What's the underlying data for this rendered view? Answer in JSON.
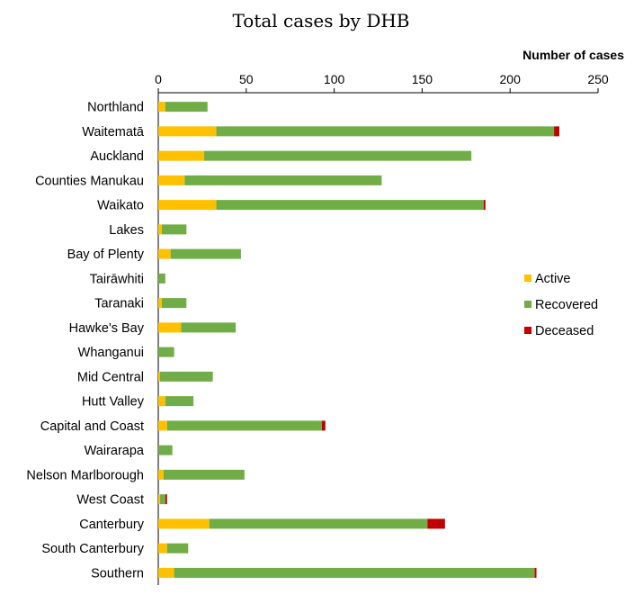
{
  "chart_data": {
    "type": "bar",
    "orientation": "horizontal",
    "stacked": true,
    "title": "Total cases by DHB",
    "xlabel": "Number of cases",
    "ylabel": "",
    "xlim": [
      0,
      250
    ],
    "xticks": [
      0,
      50,
      100,
      150,
      200,
      250
    ],
    "xtick_labels": [
      "0",
      "50",
      "100",
      "150",
      "200",
      "250"
    ],
    "legend_position": "right",
    "categories": [
      "Northland",
      "Waitematā",
      "Auckland",
      "Counties Manukau",
      "Waikato",
      "Lakes",
      "Bay of Plenty",
      "Tairāwhiti",
      "Taranaki",
      "Hawke's Bay",
      "Whanganui",
      "Mid Central",
      "Hutt Valley",
      "Capital and Coast",
      "Wairarapa",
      "Nelson Marlborough",
      "West Coast",
      "Canterbury",
      "South Canterbury",
      "Southern"
    ],
    "series": [
      {
        "name": "Active",
        "color": "#FFC000",
        "values": [
          4,
          33,
          26,
          15,
          33,
          2,
          7,
          0,
          2,
          13,
          0,
          1,
          4,
          5,
          0,
          3,
          1,
          29,
          5,
          9
        ]
      },
      {
        "name": "Recovered",
        "color": "#70AD47",
        "values": [
          24,
          192,
          152,
          112,
          152,
          14,
          40,
          4,
          14,
          31,
          9,
          30,
          16,
          88,
          8,
          46,
          3,
          124,
          12,
          205
        ]
      },
      {
        "name": "Deceased",
        "color": "#C00000",
        "values": [
          0,
          3,
          0,
          0,
          1,
          0,
          0,
          0,
          0,
          0,
          0,
          0,
          0,
          2,
          0,
          0,
          1,
          10,
          0,
          1
        ]
      }
    ]
  }
}
